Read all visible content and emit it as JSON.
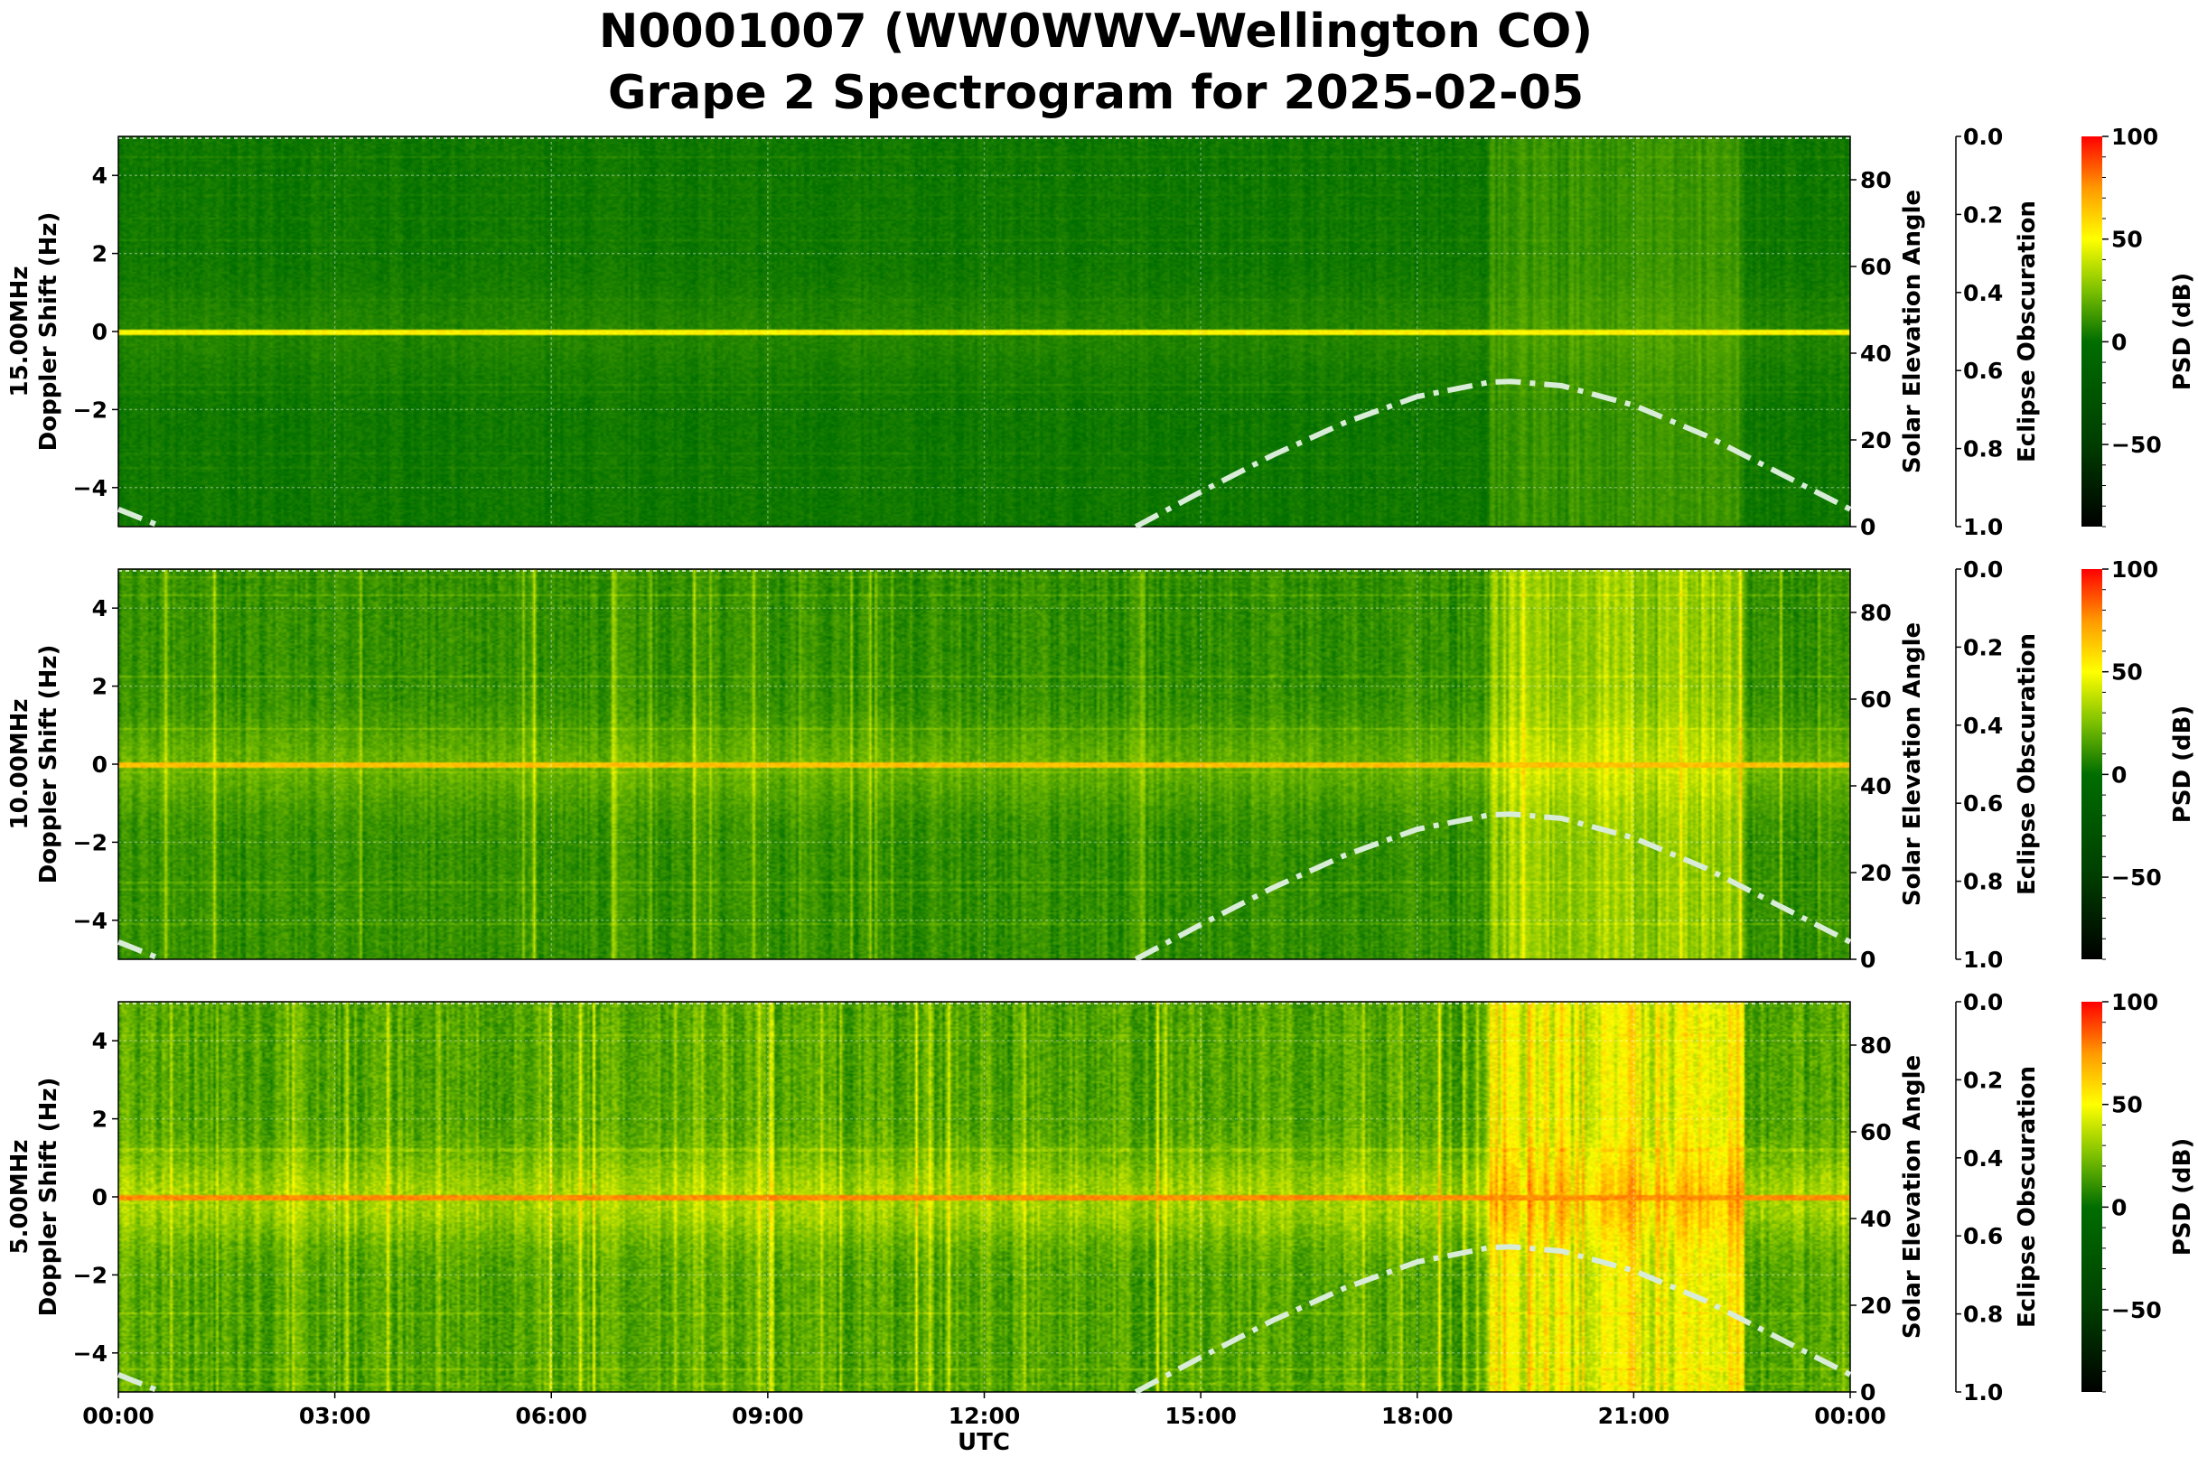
{
  "title": {
    "line1": "N0001007 (WW0WWV-Wellington CO)",
    "line2": "Grape 2 Spectrogram for 2025-02-05"
  },
  "chart_data": {
    "type": "heatmap",
    "xlabel": "UTC",
    "x_ticks": [
      "00:00",
      "03:00",
      "06:00",
      "09:00",
      "12:00",
      "15:00",
      "18:00",
      "21:00",
      "00:00"
    ],
    "x_range_hours": [
      0,
      24
    ],
    "grid": true,
    "panels": [
      {
        "frequency_label": "15.00MHz",
        "ylabel": "Doppler Shift (Hz)",
        "y_range": [
          -5,
          5
        ],
        "y_ticks": [
          "4",
          "2",
          "0",
          "−2",
          "−4"
        ],
        "carrier_line_hz": 0,
        "activity_level": "low",
        "enhanced_activity_utc_hours": [
          19,
          22.5
        ]
      },
      {
        "frequency_label": "10.00MHz",
        "ylabel": "Doppler Shift (Hz)",
        "y_range": [
          -5,
          5
        ],
        "y_ticks": [
          "4",
          "2",
          "0",
          "−2",
          "−4"
        ],
        "carrier_line_hz": 0,
        "activity_level": "medium",
        "enhanced_activity_utc_hours": [
          19,
          22.5
        ]
      },
      {
        "frequency_label": "5.00MHz",
        "ylabel": "Doppler Shift (Hz)",
        "y_range": [
          -5,
          5
        ],
        "y_ticks": [
          "4",
          "2",
          "0",
          "−2",
          "−4"
        ],
        "carrier_line_hz": 0,
        "activity_level": "high",
        "enhanced_activity_utc_hours": [
          19,
          22.5
        ]
      }
    ],
    "solar_elevation": {
      "axis_label": "Solar Elevation Angle",
      "range": [
        0,
        90
      ],
      "ticks": [
        "0",
        "20",
        "40",
        "60",
        "80"
      ],
      "line_color": "#d8ecd8",
      "points_hours_deg": [
        [
          0,
          4
        ],
        [
          0.6,
          0
        ],
        [
          14.1,
          0
        ],
        [
          15,
          8
        ],
        [
          16,
          16.5
        ],
        [
          17,
          24
        ],
        [
          18,
          30
        ],
        [
          19,
          33.3
        ],
        [
          19.3,
          33.5
        ],
        [
          20,
          32.5
        ],
        [
          21,
          28
        ],
        [
          22,
          21
        ],
        [
          23,
          12.5
        ],
        [
          24,
          4
        ]
      ]
    },
    "eclipse_obscuration": {
      "axis_label": "Eclipse Obscuration",
      "range": [
        0.0,
        1.0
      ],
      "inverted": true,
      "ticks": [
        "0.0",
        "0.2",
        "0.4",
        "0.6",
        "0.8",
        "1.0"
      ]
    },
    "colorbar": {
      "label": "PSD (dB)",
      "range": [
        -90,
        100
      ],
      "ticks": [
        "100",
        "50",
        "0",
        "−50"
      ],
      "tick_values": [
        100,
        50,
        0,
        -50
      ],
      "colormap_stops": [
        [
          -90,
          "#000000"
        ],
        [
          -50,
          "#003d00"
        ],
        [
          0,
          "#006e00"
        ],
        [
          25,
          "#7cc000"
        ],
        [
          50,
          "#ffff00"
        ],
        [
          75,
          "#ff9900"
        ],
        [
          100,
          "#ff0000"
        ]
      ]
    }
  }
}
